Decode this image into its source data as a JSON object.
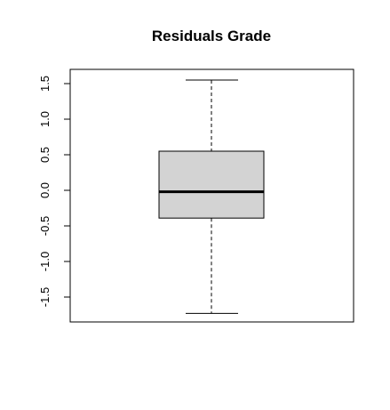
{
  "chart_data": {
    "type": "boxplot",
    "title": "Residuals  Grade",
    "xlabel": "",
    "ylabel": "",
    "ylim": [
      -1.85,
      1.7
    ],
    "yticks": [
      -1.5,
      -1.0,
      -0.5,
      0.0,
      0.5,
      1.0,
      1.5
    ],
    "ytick_labels": [
      "-1.5",
      "-1.0",
      "-0.5",
      "0.0",
      "0.5",
      "1.0",
      "1.5"
    ],
    "box": {
      "whisker_low": -1.73,
      "q1": -0.39,
      "median": -0.02,
      "q3": 0.55,
      "whisker_high": 1.55
    },
    "box_fill": "#d3d3d3",
    "grid": false
  }
}
